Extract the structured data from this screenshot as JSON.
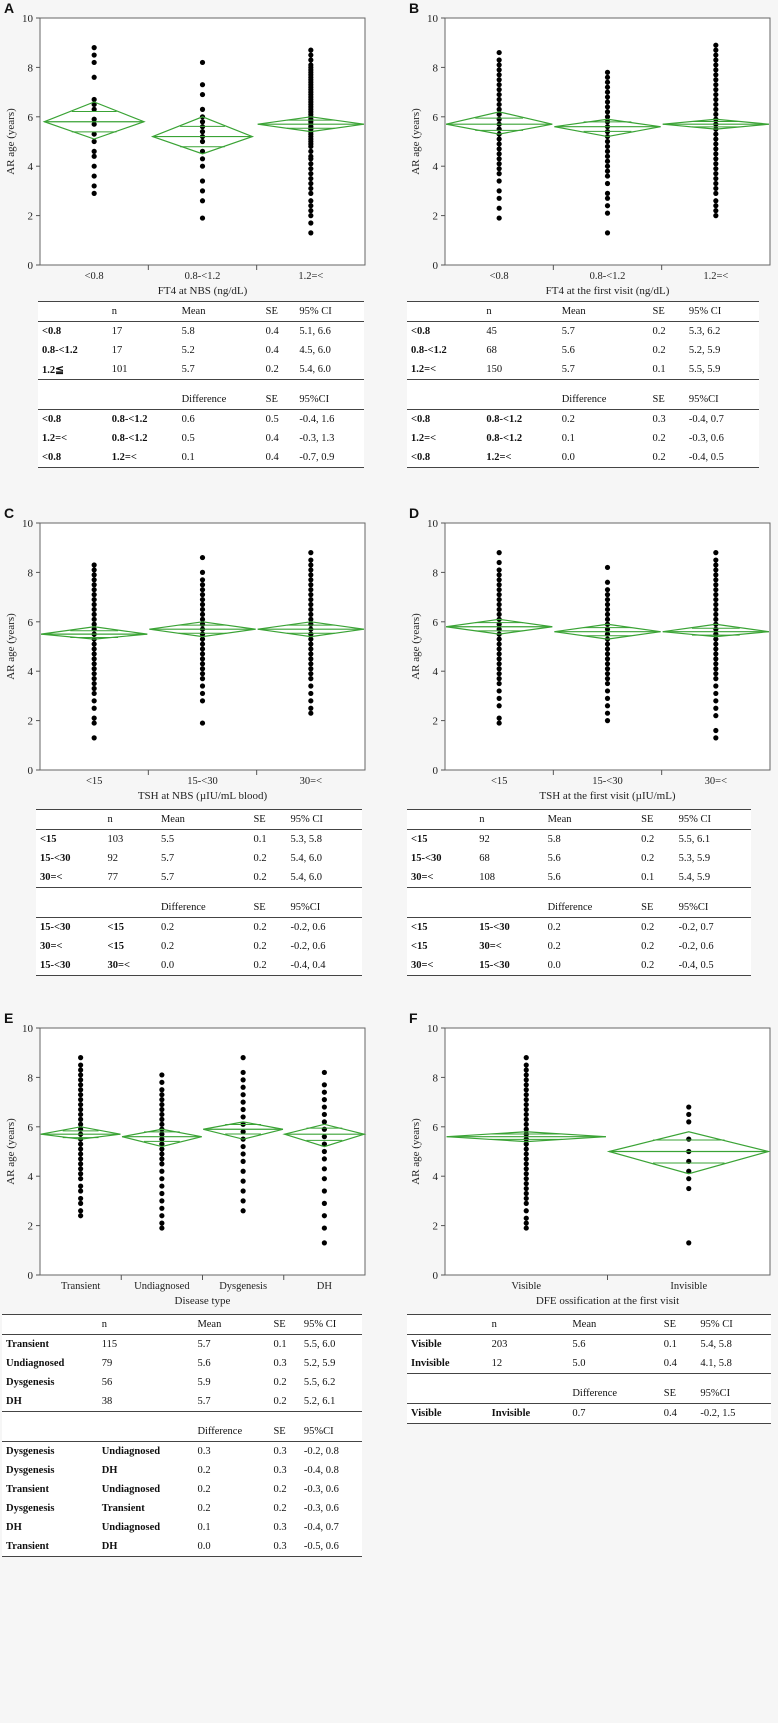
{
  "style": {
    "diamond_color": "#3aa335",
    "point_color": "#000000"
  },
  "chart_data": [
    {
      "id": "A",
      "type": "scatter",
      "ylabel": "AR age (years)",
      "xlabel": "FT4 at NBS (ng/dL)",
      "ylim": [
        0,
        10
      ],
      "yticks": [
        "0",
        "2",
        "4",
        "6",
        "8",
        "10"
      ],
      "categories": [
        "<0.8",
        "0.8-<1.2",
        "1.2=<"
      ],
      "groups": [
        {
          "mean": 5.8,
          "lo": 5.1,
          "hi": 6.6,
          "w": 0.92,
          "pts": [
            2.9,
            3.2,
            3.6,
            4.0,
            4.4,
            4.6,
            5.0,
            5.3,
            5.7,
            5.9,
            6.3,
            6.5,
            6.7,
            7.6,
            8.2,
            8.5,
            8.8
          ]
        },
        {
          "mean": 5.2,
          "lo": 4.5,
          "hi": 6.0,
          "w": 0.92,
          "pts": [
            1.9,
            2.6,
            3.0,
            3.4,
            4.0,
            4.3,
            4.6,
            5.0,
            5.2,
            5.4,
            5.6,
            5.8,
            6.0,
            6.3,
            6.9,
            7.3,
            8.2
          ]
        },
        {
          "mean": 5.7,
          "lo": 5.4,
          "hi": 6.0,
          "w": 0.98,
          "pts": [
            1.3,
            1.7,
            2.0,
            2.2,
            2.4,
            2.6,
            2.9,
            3.1,
            3.3,
            3.5,
            3.7,
            3.9,
            4.1,
            4.3,
            4.4,
            4.6,
            4.8,
            4.9,
            5.0,
            5.1,
            5.2,
            5.3,
            5.4,
            5.5,
            5.6,
            5.7,
            5.8,
            5.9,
            6.0,
            6.1,
            6.2,
            6.3,
            6.4,
            6.5,
            6.6,
            6.7,
            6.8,
            6.9,
            7.0,
            7.1,
            7.2,
            7.3,
            7.4,
            7.5,
            7.6,
            7.7,
            7.8,
            7.9,
            8.0,
            8.1,
            8.3,
            8.5,
            8.7
          ]
        }
      ]
    },
    {
      "id": "B",
      "type": "scatter",
      "ylabel": "AR age (years)",
      "xlabel": "FT4 at  the first visit (ng/dL)",
      "ylim": [
        0,
        10
      ],
      "yticks": [
        "0",
        "2",
        "4",
        "6",
        "8",
        "10"
      ],
      "categories": [
        "<0.8 ",
        "0.8-<1.2 ",
        "1.2=<"
      ],
      "groups": [
        {
          "mean": 5.7,
          "lo": 5.3,
          "hi": 6.2,
          "w": 0.98,
          "pts": [
            1.9,
            2.3,
            2.7,
            3.0,
            3.4,
            3.7,
            3.9,
            4.1,
            4.3,
            4.5,
            4.7,
            4.9,
            5.1,
            5.3,
            5.5,
            5.7,
            5.9,
            6.1,
            6.3,
            6.5,
            6.7,
            6.9,
            7.1,
            7.3,
            7.5,
            7.7,
            7.9,
            8.1,
            8.3,
            8.6
          ]
        },
        {
          "mean": 5.6,
          "lo": 5.2,
          "hi": 5.9,
          "w": 0.98,
          "pts": [
            1.3,
            2.1,
            2.4,
            2.7,
            2.9,
            3.3,
            3.6,
            3.8,
            4.0,
            4.2,
            4.4,
            4.6,
            4.8,
            5.0,
            5.2,
            5.4,
            5.6,
            5.8,
            6.0,
            6.2,
            6.4,
            6.6,
            6.8,
            7.0,
            7.2,
            7.4,
            7.6,
            7.8
          ]
        },
        {
          "mean": 5.7,
          "lo": 5.5,
          "hi": 5.9,
          "w": 0.98,
          "pts": [
            2.0,
            2.2,
            2.4,
            2.6,
            2.9,
            3.1,
            3.3,
            3.5,
            3.7,
            3.9,
            4.1,
            4.3,
            4.5,
            4.7,
            4.9,
            5.1,
            5.3,
            5.5,
            5.7,
            5.9,
            6.1,
            6.3,
            6.5,
            6.7,
            6.9,
            7.1,
            7.3,
            7.5,
            7.7,
            7.9,
            8.1,
            8.3,
            8.5,
            8.7,
            8.9
          ]
        }
      ]
    },
    {
      "id": "C",
      "type": "scatter",
      "ylabel": "AR age (years)",
      "xlabel": "TSH at  NBS (µIU/mL blood)",
      "ylim": [
        0,
        10
      ],
      "yticks": [
        "0",
        "2",
        "4",
        "6",
        "8",
        "10"
      ],
      "categories": [
        "<15",
        "15-<30",
        "30=<"
      ],
      "groups": [
        {
          "mean": 5.5,
          "lo": 5.3,
          "hi": 5.8,
          "w": 0.98,
          "pts": [
            1.3,
            1.9,
            2.1,
            2.5,
            2.8,
            3.1,
            3.3,
            3.5,
            3.7,
            3.9,
            4.1,
            4.3,
            4.5,
            4.7,
            4.9,
            5.1,
            5.3,
            5.5,
            5.7,
            5.9,
            6.1,
            6.3,
            6.5,
            6.7,
            6.9,
            7.1,
            7.3,
            7.5,
            7.7,
            7.9,
            8.1,
            8.3
          ]
        },
        {
          "mean": 5.7,
          "lo": 5.4,
          "hi": 6.0,
          "w": 0.98,
          "pts": [
            1.9,
            2.8,
            3.1,
            3.4,
            3.7,
            3.9,
            4.1,
            4.3,
            4.5,
            4.7,
            4.9,
            5.1,
            5.3,
            5.5,
            5.7,
            5.9,
            6.1,
            6.3,
            6.5,
            6.7,
            6.9,
            7.1,
            7.3,
            7.5,
            7.7,
            8.0,
            8.6
          ]
        },
        {
          "mean": 5.7,
          "lo": 5.4,
          "hi": 6.0,
          "w": 0.98,
          "pts": [
            2.3,
            2.5,
            2.8,
            3.1,
            3.4,
            3.7,
            3.9,
            4.1,
            4.3,
            4.5,
            4.7,
            4.9,
            5.1,
            5.3,
            5.5,
            5.7,
            5.9,
            6.1,
            6.3,
            6.5,
            6.7,
            6.9,
            7.1,
            7.3,
            7.5,
            7.7,
            7.9,
            8.1,
            8.3,
            8.5,
            8.8
          ]
        }
      ]
    },
    {
      "id": "D",
      "type": "scatter",
      "ylabel": "AR age (years)",
      "xlabel": "TSH at  the first visit (µIU/mL)",
      "ylim": [
        0,
        10
      ],
      "yticks": [
        "0",
        "2",
        "4",
        "6",
        "8",
        "10"
      ],
      "categories": [
        "<15",
        "15-<30",
        "30=<"
      ],
      "groups": [
        {
          "mean": 5.8,
          "lo": 5.5,
          "hi": 6.1,
          "w": 0.98,
          "pts": [
            1.9,
            2.1,
            2.6,
            2.9,
            3.2,
            3.5,
            3.7,
            3.9,
            4.1,
            4.3,
            4.5,
            4.7,
            4.9,
            5.1,
            5.3,
            5.5,
            5.7,
            5.9,
            6.1,
            6.3,
            6.5,
            6.7,
            6.9,
            7.1,
            7.3,
            7.5,
            7.7,
            7.9,
            8.1,
            8.4,
            8.8
          ]
        },
        {
          "mean": 5.6,
          "lo": 5.3,
          "hi": 5.9,
          "w": 0.98,
          "pts": [
            2.0,
            2.3,
            2.6,
            2.9,
            3.2,
            3.5,
            3.7,
            3.9,
            4.1,
            4.3,
            4.5,
            4.7,
            4.9,
            5.1,
            5.3,
            5.5,
            5.7,
            5.9,
            6.1,
            6.3,
            6.5,
            6.7,
            6.9,
            7.1,
            7.3,
            7.6,
            8.2
          ]
        },
        {
          "mean": 5.6,
          "lo": 5.4,
          "hi": 5.9,
          "w": 0.98,
          "pts": [
            1.3,
            1.6,
            2.2,
            2.5,
            2.8,
            3.1,
            3.4,
            3.7,
            3.9,
            4.1,
            4.3,
            4.5,
            4.7,
            4.9,
            5.1,
            5.3,
            5.5,
            5.7,
            5.9,
            6.1,
            6.3,
            6.5,
            6.7,
            6.9,
            7.1,
            7.3,
            7.5,
            7.7,
            7.9,
            8.1,
            8.3,
            8.5,
            8.8
          ]
        }
      ]
    },
    {
      "id": "E",
      "type": "scatter",
      "ylabel": "AR age (years)",
      "xlabel": "Disease type",
      "ylim": [
        0,
        10
      ],
      "yticks": [
        "0",
        "2",
        "4",
        "6",
        "8",
        "10"
      ],
      "categories": [
        "Transient",
        "Undiagnosed",
        "Dysgenesis",
        "DH"
      ],
      "groups": [
        {
          "mean": 5.7,
          "lo": 5.5,
          "hi": 6.0,
          "w": 0.98,
          "pts": [
            2.4,
            2.6,
            2.9,
            3.1,
            3.4,
            3.6,
            3.9,
            4.1,
            4.3,
            4.5,
            4.7,
            4.9,
            5.1,
            5.3,
            5.5,
            5.7,
            5.9,
            6.1,
            6.3,
            6.5,
            6.7,
            6.9,
            7.1,
            7.3,
            7.5,
            7.7,
            7.9,
            8.1,
            8.3,
            8.5,
            8.8
          ]
        },
        {
          "mean": 5.6,
          "lo": 5.2,
          "hi": 5.9,
          "w": 0.98,
          "pts": [
            1.9,
            2.1,
            2.4,
            2.7,
            3.0,
            3.3,
            3.6,
            3.9,
            4.2,
            4.5,
            4.7,
            4.9,
            5.1,
            5.3,
            5.5,
            5.7,
            5.9,
            6.1,
            6.3,
            6.5,
            6.7,
            6.9,
            7.1,
            7.3,
            7.5,
            7.8,
            8.1
          ]
        },
        {
          "mean": 5.9,
          "lo": 5.5,
          "hi": 6.2,
          "w": 0.98,
          "pts": [
            2.6,
            3.0,
            3.4,
            3.8,
            4.2,
            4.6,
            4.9,
            5.2,
            5.5,
            5.8,
            6.1,
            6.4,
            6.7,
            7.0,
            7.3,
            7.6,
            7.9,
            8.2,
            8.8
          ]
        },
        {
          "mean": 5.7,
          "lo": 5.2,
          "hi": 6.1,
          "w": 0.98,
          "pts": [
            1.3,
            1.9,
            2.4,
            2.9,
            3.4,
            3.9,
            4.3,
            4.7,
            5.0,
            5.3,
            5.6,
            5.9,
            6.2,
            6.5,
            6.8,
            7.1,
            7.4,
            7.7,
            8.2
          ]
        }
      ]
    },
    {
      "id": "F",
      "type": "scatter",
      "ylabel": "AR age (years)",
      "xlabel": "DFE ossification at  the first visit",
      "ylim": [
        0,
        10
      ],
      "yticks": [
        "0",
        "2",
        "4",
        "6",
        "8",
        "10"
      ],
      "categories": [
        "Visible",
        "Invisible"
      ],
      "groups": [
        {
          "mean": 5.6,
          "lo": 5.4,
          "hi": 5.8,
          "w": 0.98,
          "pts": [
            1.9,
            2.1,
            2.3,
            2.6,
            2.9,
            3.1,
            3.3,
            3.5,
            3.7,
            3.9,
            4.1,
            4.3,
            4.5,
            4.7,
            4.9,
            5.1,
            5.3,
            5.5,
            5.7,
            5.9,
            6.1,
            6.3,
            6.5,
            6.7,
            6.9,
            7.1,
            7.3,
            7.5,
            7.7,
            7.9,
            8.1,
            8.3,
            8.5,
            8.8
          ]
        },
        {
          "mean": 5.0,
          "lo": 4.1,
          "hi": 5.8,
          "w": 0.98,
          "pts": [
            1.3,
            3.5,
            3.9,
            4.2,
            4.6,
            5.0,
            5.5,
            6.2,
            6.5,
            6.8
          ]
        }
      ]
    }
  ],
  "tables": [
    {
      "id": "A",
      "h1": [
        "",
        "n",
        "Mean",
        "SE",
        "95% CI"
      ],
      "r1": [
        [
          "<0.8",
          "17",
          "5.8",
          "0.4",
          "5.1, 6.6"
        ],
        [
          "0.8-<1.2",
          "17",
          "5.2",
          "0.4",
          "4.5, 6.0"
        ],
        [
          "1.2≦",
          "101",
          "5.7",
          "0.2",
          "5.4, 6.0"
        ]
      ],
      "h2": [
        "",
        "",
        "Difference",
        "SE",
        "95%CI"
      ],
      "r2": [
        [
          "<0.8",
          "0.8-<1.2",
          "0.6",
          "0.5",
          "-0.4, 1.6"
        ],
        [
          "1.2=<",
          "0.8-<1.2",
          "0.5",
          "0.4",
          "-0.3, 1.3"
        ],
        [
          "<0.8",
          "1.2=<",
          "0.1",
          "0.4",
          "-0.7, 0.9"
        ]
      ]
    },
    {
      "id": "B",
      "h1": [
        "",
        "n",
        "Mean",
        "SE",
        "95% CI"
      ],
      "r1": [
        [
          "<0.8",
          "45",
          "5.7",
          "0.2",
          "5.3, 6.2"
        ],
        [
          "0.8-<1.2",
          "68",
          "5.6",
          "0.2",
          "5.2, 5.9"
        ],
        [
          "1.2=<",
          "150",
          "5.7",
          "0.1",
          "5.5,  5.9"
        ]
      ],
      "h2": [
        "",
        "",
        "Difference",
        "SE",
        "95%CI"
      ],
      "r2": [
        [
          "<0.8",
          "0.8-<1.2",
          "0.2",
          "0.3",
          "-0.4, 0.7"
        ],
        [
          "1.2=<",
          "0.8-<1.2",
          "0.1",
          "0.2",
          "-0.3, 0.6"
        ],
        [
          "<0.8",
          "1.2=<",
          "0.0",
          "0.2",
          "-0.4, 0.5"
        ]
      ]
    },
    {
      "id": "C",
      "h1": [
        "",
        "n",
        "Mean",
        "SE",
        "95% CI"
      ],
      "r1": [
        [
          "<15",
          "103",
          "5.5",
          "0.1",
          "5.3, 5.8"
        ],
        [
          "15-<30",
          "92",
          "5.7",
          "0.2",
          "5.4, 6.0"
        ],
        [
          "30=<",
          "77",
          "5.7",
          "0.2",
          "5.4, 6.0"
        ]
      ],
      "h2": [
        "",
        "",
        "Difference",
        "SE",
        "95%CI"
      ],
      "r2": [
        [
          "15-<30",
          "<15",
          "0.2",
          "0.2",
          "-0.2, 0.6"
        ],
        [
          "30=<",
          "<15",
          "0.2",
          "0.2",
          "-0.2, 0.6"
        ],
        [
          "15-<30",
          "30=<",
          "0.0",
          "0.2",
          "-0.4, 0.4"
        ]
      ]
    },
    {
      "id": "D",
      "h1": [
        "",
        "n",
        "Mean",
        "SE",
        "95% CI"
      ],
      "r1": [
        [
          "<15",
          "92",
          "5.8",
          "0.2",
          "5.5, 6.1"
        ],
        [
          "15-<30",
          "68",
          "5.6",
          "0.2",
          "5.3, 5.9"
        ],
        [
          "30=<",
          "108",
          "5.6",
          "0.1",
          "5.4, 5.9"
        ]
      ],
      "h2": [
        "",
        "",
        "Difference",
        "SE",
        "95%CI"
      ],
      "r2": [
        [
          "<15",
          "15-<30",
          "0.2",
          "0.2",
          "-0.2, 0.7"
        ],
        [
          "<15",
          "30=<",
          "0.2",
          "0.2",
          "-0.2, 0.6"
        ],
        [
          "30=<",
          "15-<30",
          "0.0",
          "0.2",
          "-0.4, 0.5"
        ]
      ]
    },
    {
      "id": "E",
      "h1": [
        "",
        "n",
        "Mean",
        "SE",
        "95% CI"
      ],
      "r1": [
        [
          "Transient",
          "115",
          "5.7",
          "0.1",
          "5.5, 6.0"
        ],
        [
          "Undiagnosed",
          "79",
          "5.6",
          "0.3",
          "5.2, 5.9"
        ],
        [
          "Dysgenesis",
          "56",
          "5.9",
          "0.2",
          "5.5, 6.2"
        ],
        [
          "DH",
          "38",
          "5.7",
          "0.2",
          "5.2, 6.1"
        ]
      ],
      "h2": [
        "",
        "",
        "Difference",
        "SE",
        "95%CI"
      ],
      "r2": [
        [
          "Dysgenesis",
          "Undiagnosed",
          "0.3",
          "0.3",
          "-0.2, 0.8"
        ],
        [
          "Dysgenesis",
          "DH",
          "0.2",
          "0.3",
          "-0.4, 0.8"
        ],
        [
          "Transient",
          "Undiagnosed",
          "0.2",
          "0.2",
          "-0.3, 0.6"
        ],
        [
          "Dysgenesis",
          "Transient",
          "0.2",
          "0.2",
          "-0.3, 0.6"
        ],
        [
          "DH",
          "Undiagnosed",
          "0.1",
          "0.3",
          "-0.4, 0.7"
        ],
        [
          "Transient",
          "DH",
          "0.0",
          "0.3",
          "-0.5, 0.6"
        ]
      ]
    },
    {
      "id": "F",
      "h1": [
        "",
        "n",
        "Mean",
        "SE",
        "95% CI"
      ],
      "r1": [
        [
          "Visible",
          "203",
          "5.6",
          "0.1",
          "5.4, 5.8"
        ],
        [
          "Invisible",
          "12",
          "5.0",
          "0.4",
          "4.1, 5.8"
        ]
      ],
      "h2": [
        "",
        "",
        "Difference",
        "SE",
        "95%CI"
      ],
      "r2": [
        [
          "Visible",
          "Invisible",
          "0.7",
          "0.4",
          "-0.2, 1.5"
        ]
      ]
    }
  ]
}
